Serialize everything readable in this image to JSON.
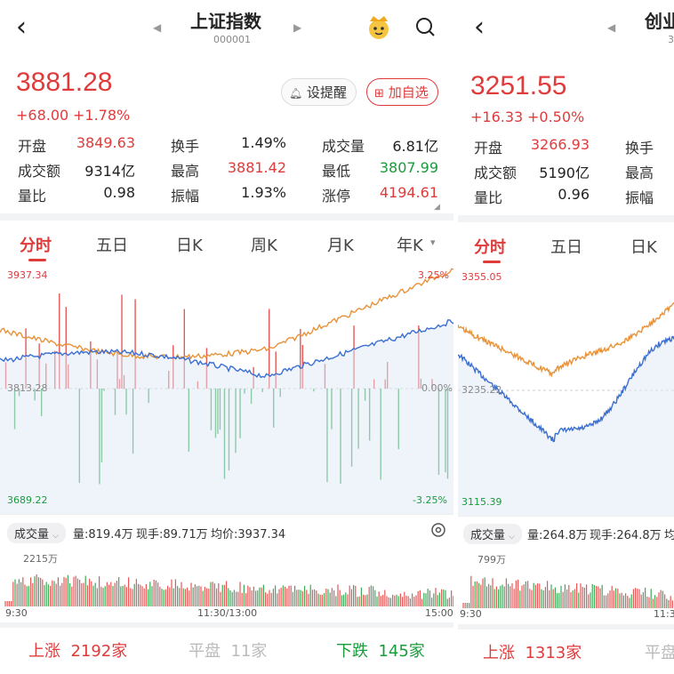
{
  "left": {
    "title": "上证指数",
    "code": "000001",
    "price": "3881.28",
    "change": "+68.00",
    "change_pct": "+1.78%",
    "buttons": {
      "alert": "设提醒",
      "add": "加自选"
    },
    "stats": [
      {
        "label": "开盘",
        "value": "3849.63",
        "tone": "red"
      },
      {
        "label": "换手",
        "value": "1.49%",
        "tone": "plain"
      },
      {
        "label": "成交量",
        "value": "6.81亿",
        "tone": "plain"
      },
      {
        "label": "成交额",
        "value": "9314亿",
        "tone": "plain"
      },
      {
        "label": "最高",
        "value": "3881.42",
        "tone": "red"
      },
      {
        "label": "最低",
        "value": "3807.99",
        "tone": "green"
      },
      {
        "label": "量比",
        "value": "0.98",
        "tone": "plain"
      },
      {
        "label": "振幅",
        "value": "1.93%",
        "tone": "plain"
      },
      {
        "label": "涨停",
        "value": "4194.61",
        "tone": "red"
      }
    ],
    "tabs": [
      "分时",
      "五日",
      "日K",
      "周K",
      "月K",
      "年K"
    ],
    "chart": {
      "top": "3937.34",
      "mid": "3813.28",
      "bottom": "3689.22",
      "top_pct": "3.25%",
      "mid_pct": "0.00%",
      "bottom_pct": "-3.25%"
    },
    "volume": {
      "pill": "成交量",
      "qty": "量:819.4万",
      "now": "现手:89.71万",
      "avg": "均价:3937.34",
      "max": "2215万"
    },
    "times": [
      "9:30",
      "11:30/13:00",
      "15:00"
    ],
    "footer": {
      "up_label": "上涨",
      "up_value": "2192家",
      "flat_label": "平盘",
      "flat_value": "11家",
      "down_label": "下跌",
      "down_value": "145家"
    }
  },
  "right": {
    "title": "创业",
    "code": "3",
    "price": "3251.55",
    "change": "+16.33",
    "change_pct": "+0.50%",
    "stats": [
      {
        "label": "开盘",
        "value": "3266.93",
        "tone": "red"
      },
      {
        "label": "换手",
        "value": "",
        "tone": "plain"
      },
      {
        "label": "成交额",
        "value": "5190亿",
        "tone": "plain"
      },
      {
        "label": "最高",
        "value": "",
        "tone": "plain"
      },
      {
        "label": "量比",
        "value": "0.96",
        "tone": "plain"
      },
      {
        "label": "振幅",
        "value": "",
        "tone": "plain"
      }
    ],
    "tabs": [
      "分时",
      "五日",
      "日K"
    ],
    "chart": {
      "top": "3355.05",
      "mid": "3235.22",
      "bottom": "3115.39"
    },
    "volume": {
      "pill": "成交量",
      "qty": "量:264.8万",
      "now": "现手:264.8万",
      "avg": "均",
      "max": "799万"
    },
    "times": [
      "9:30",
      "11:3"
    ],
    "footer": {
      "up_label": "上涨",
      "up_value": "1313家",
      "flat_label": "平盘"
    }
  },
  "colors": {
    "up": "#e03b3b",
    "down": "#1a9b3c",
    "price_line": "#3b6fd1",
    "avg_line": "#e8933a"
  }
}
